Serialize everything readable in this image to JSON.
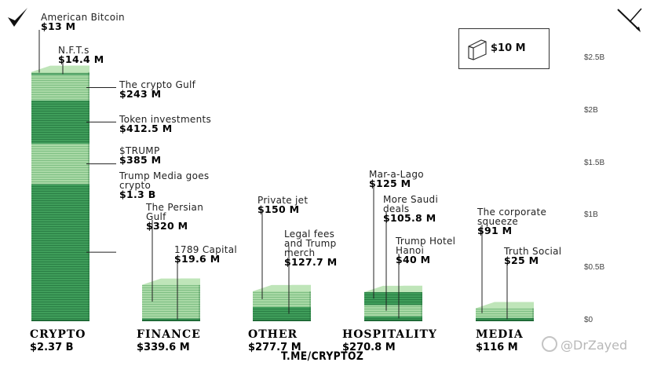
{
  "chart_data": {
    "type": "bar",
    "stacked": true,
    "categories": [
      {
        "name": "CRYPTO",
        "total": "$2.37 B",
        "segments": [
          {
            "label": "American Bitcoin",
            "value_text": "$13 M",
            "value": 13
          },
          {
            "label": "N.F.T.s",
            "value_text": "$14.4 M",
            "value": 14.4
          },
          {
            "label": "The crypto Gulf",
            "value_text": "$243 M",
            "value": 243
          },
          {
            "label": "Token investments",
            "value_text": "$412.5 M",
            "value": 412.5
          },
          {
            "label": "$TRUMP",
            "value_text": "$385 M",
            "value": 385
          },
          {
            "label": "Trump Media goes crypto",
            "value_text": "$1.3 B",
            "value": 1300
          }
        ]
      },
      {
        "name": "FINANCE",
        "total": "$339.6 M",
        "segments": [
          {
            "label": "The Persian Gulf",
            "value_text": "$320 M",
            "value": 320
          },
          {
            "label": "1789 Capital",
            "value_text": "$19.6 M",
            "value": 19.6
          }
        ]
      },
      {
        "name": "OTHER",
        "total": "$277.7 M",
        "segments": [
          {
            "label": "Private jet",
            "value_text": "$150 M",
            "value": 150
          },
          {
            "label": "Legal fees and Trump merch",
            "value_text": "$127.7 M",
            "value": 127.7
          }
        ]
      },
      {
        "name": "HOSPITALITY",
        "total": "$270.8 M",
        "segments": [
          {
            "label": "Mar-a-Lago",
            "value_text": "$125 M",
            "value": 125
          },
          {
            "label": "More Saudi deals",
            "value_text": "$105.8 M",
            "value": 105.8
          },
          {
            "label": "Trump Hotel Hanoi",
            "value_text": "$40 M",
            "value": 40
          }
        ]
      },
      {
        "name": "MEDIA",
        "total": "$116 M",
        "segments": [
          {
            "label": "The corporate squeeze",
            "value_text": "$91 M",
            "value": 91
          },
          {
            "label": "Truth Social",
            "value_text": "$25 M",
            "value": 25
          }
        ]
      }
    ],
    "y_ticks": [
      "$0",
      "$0.5B",
      "$1B",
      "$1.5B",
      "$2B",
      "$2.5B"
    ],
    "y_tick_values": [
      0,
      500,
      1000,
      1500,
      2000,
      2500
    ],
    "ylim": [
      0,
      2500
    ],
    "legend": {
      "label": "$10 M",
      "position": "top-right"
    },
    "colors": {
      "green_dark": "#2f8f4e",
      "green_mid": "#4caf6a",
      "green_light": "#8fcf9a",
      "stripe": "#cfe9c8"
    }
  },
  "footer": "T.ME/CRYPTOZ",
  "watermark": "@DrZayed"
}
